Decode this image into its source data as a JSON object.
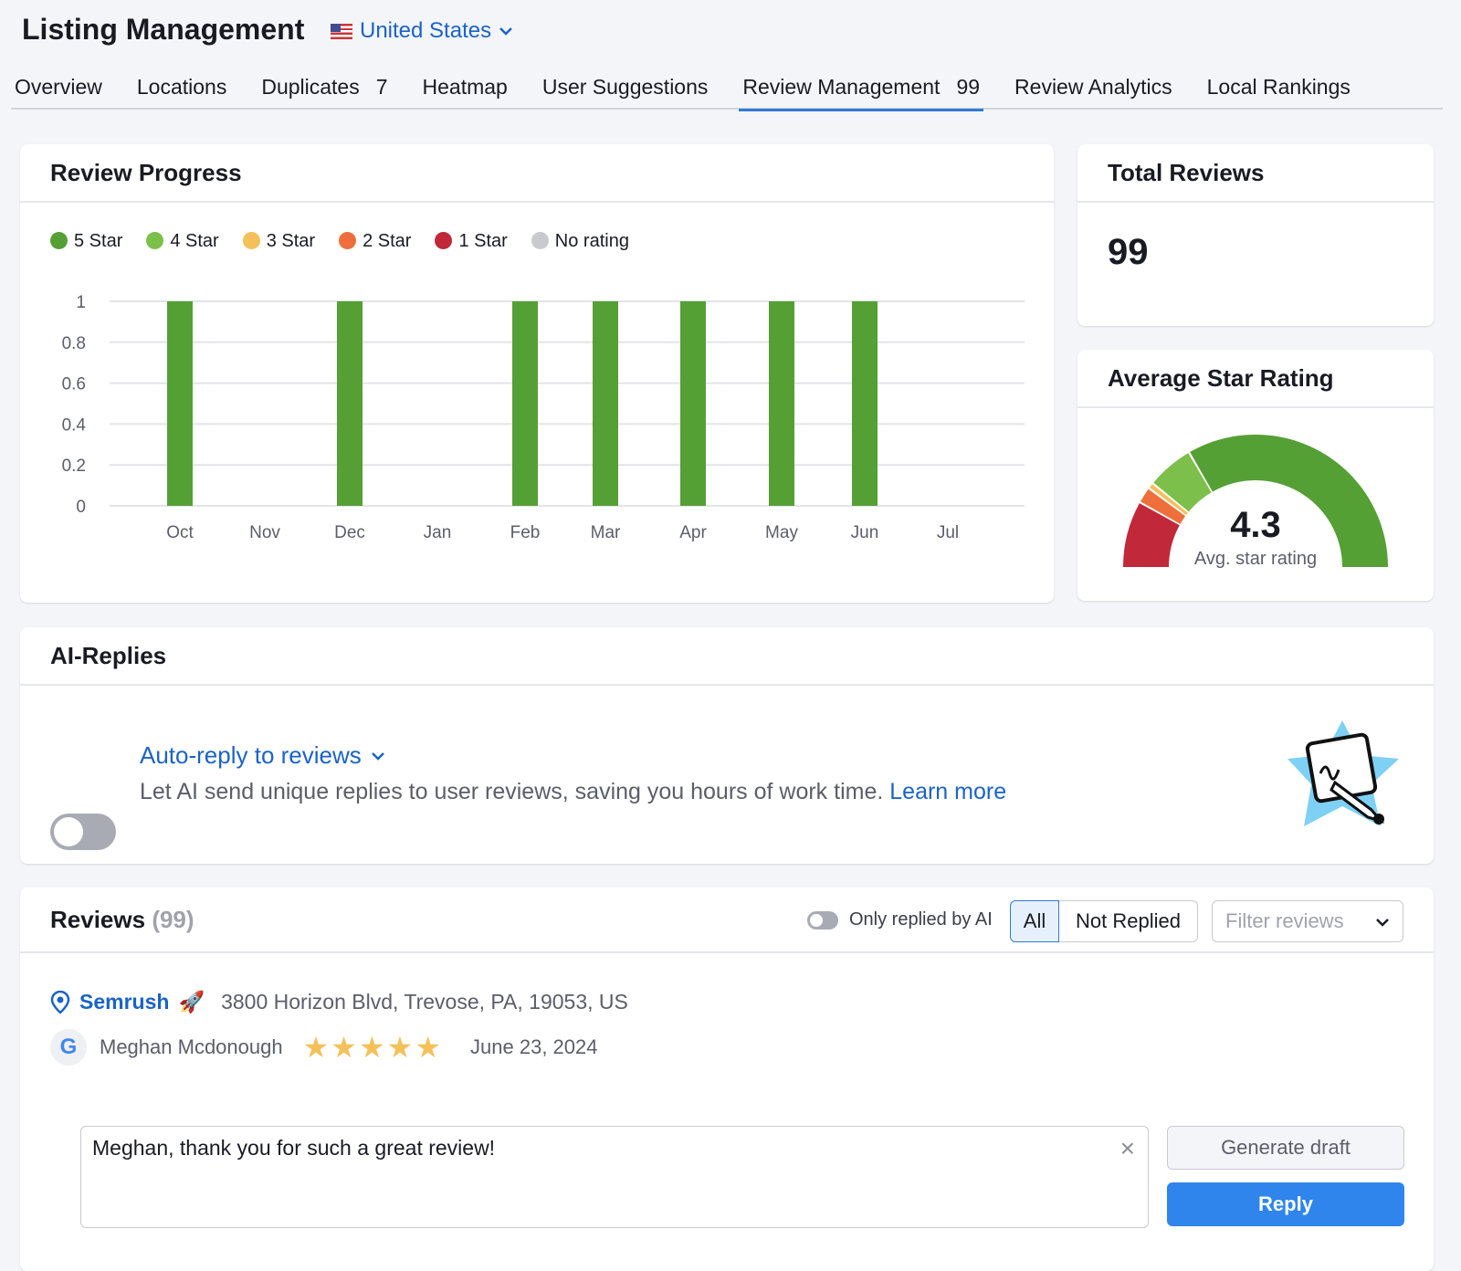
{
  "header": {
    "title": "Listing Management",
    "country": "United States"
  },
  "tabs": [
    {
      "label": "Overview"
    },
    {
      "label": "Locations"
    },
    {
      "label": "Duplicates",
      "count": "7"
    },
    {
      "label": "Heatmap"
    },
    {
      "label": "User Suggestions"
    },
    {
      "label": "Review Management",
      "count": "99",
      "active": true
    },
    {
      "label": "Review Analytics"
    },
    {
      "label": "Local Rankings"
    }
  ],
  "review_progress": {
    "title": "Review Progress"
  },
  "chart_data": {
    "type": "bar",
    "legend": [
      {
        "name": "5 Star",
        "color": "#55a035"
      },
      {
        "name": "4 Star",
        "color": "#7cbf4a"
      },
      {
        "name": "3 Star",
        "color": "#f4c05a"
      },
      {
        "name": "2 Star",
        "color": "#ee6f3c"
      },
      {
        "name": "1 Star",
        "color": "#c1283a"
      },
      {
        "name": "No rating",
        "color": "#c8cad0"
      }
    ],
    "categories": [
      "Oct",
      "Nov",
      "Dec",
      "Jan",
      "Feb",
      "Mar",
      "Apr",
      "May",
      "Jun",
      "Jul"
    ],
    "series": [
      {
        "name": "5 Star",
        "values": [
          1,
          0,
          1,
          0,
          1,
          1,
          1,
          1,
          1,
          0
        ]
      }
    ],
    "yticks": [
      "1",
      "0.8",
      "0.6",
      "0.4",
      "0.2",
      "0"
    ],
    "ylim": [
      0,
      1
    ],
    "grid": true,
    "legend_position": "top-left"
  },
  "total_reviews": {
    "title": "Total Reviews",
    "value": "99"
  },
  "avg_rating": {
    "title": "Average Star Rating",
    "value": "4.3",
    "label": "Avg. star rating"
  },
  "ai_replies": {
    "title": "AI-Replies",
    "auto_reply": "Auto-reply to reviews",
    "description": "Let AI send unique replies to user reviews, saving you hours of work time.",
    "learn_more": "Learn more",
    "enabled": false
  },
  "reviews": {
    "title": "Reviews",
    "count": "(99)",
    "only_ai": "Only replied by AI",
    "filter_all": "All",
    "filter_not_replied": "Not Replied",
    "filter_placeholder": "Filter reviews",
    "items": [
      {
        "business": "Semrush",
        "address": "3800 Horizon Blvd, Trevose, PA, 19053, US",
        "author": "Meghan Mcdonough",
        "stars": 5,
        "date": "June 23, 2024",
        "reply": "Meghan, thank you for such a great review!"
      }
    ],
    "generate_draft": "Generate draft",
    "reply": "Reply"
  }
}
